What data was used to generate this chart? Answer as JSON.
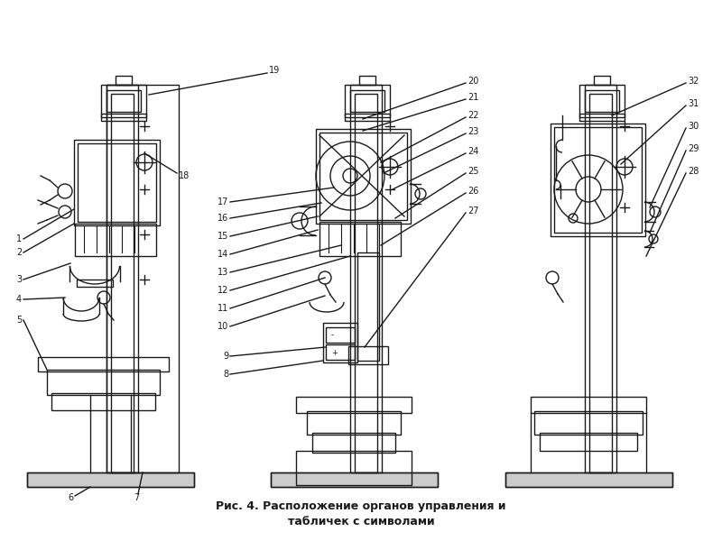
{
  "title_line1": "Рис. 4. Расположение органов управления и",
  "title_line2": "табличек с символами",
  "bg_color": "#ffffff",
  "line_color": "#1a1a1a",
  "fig_width": 8.0,
  "fig_height": 6.0,
  "dpi": 100
}
